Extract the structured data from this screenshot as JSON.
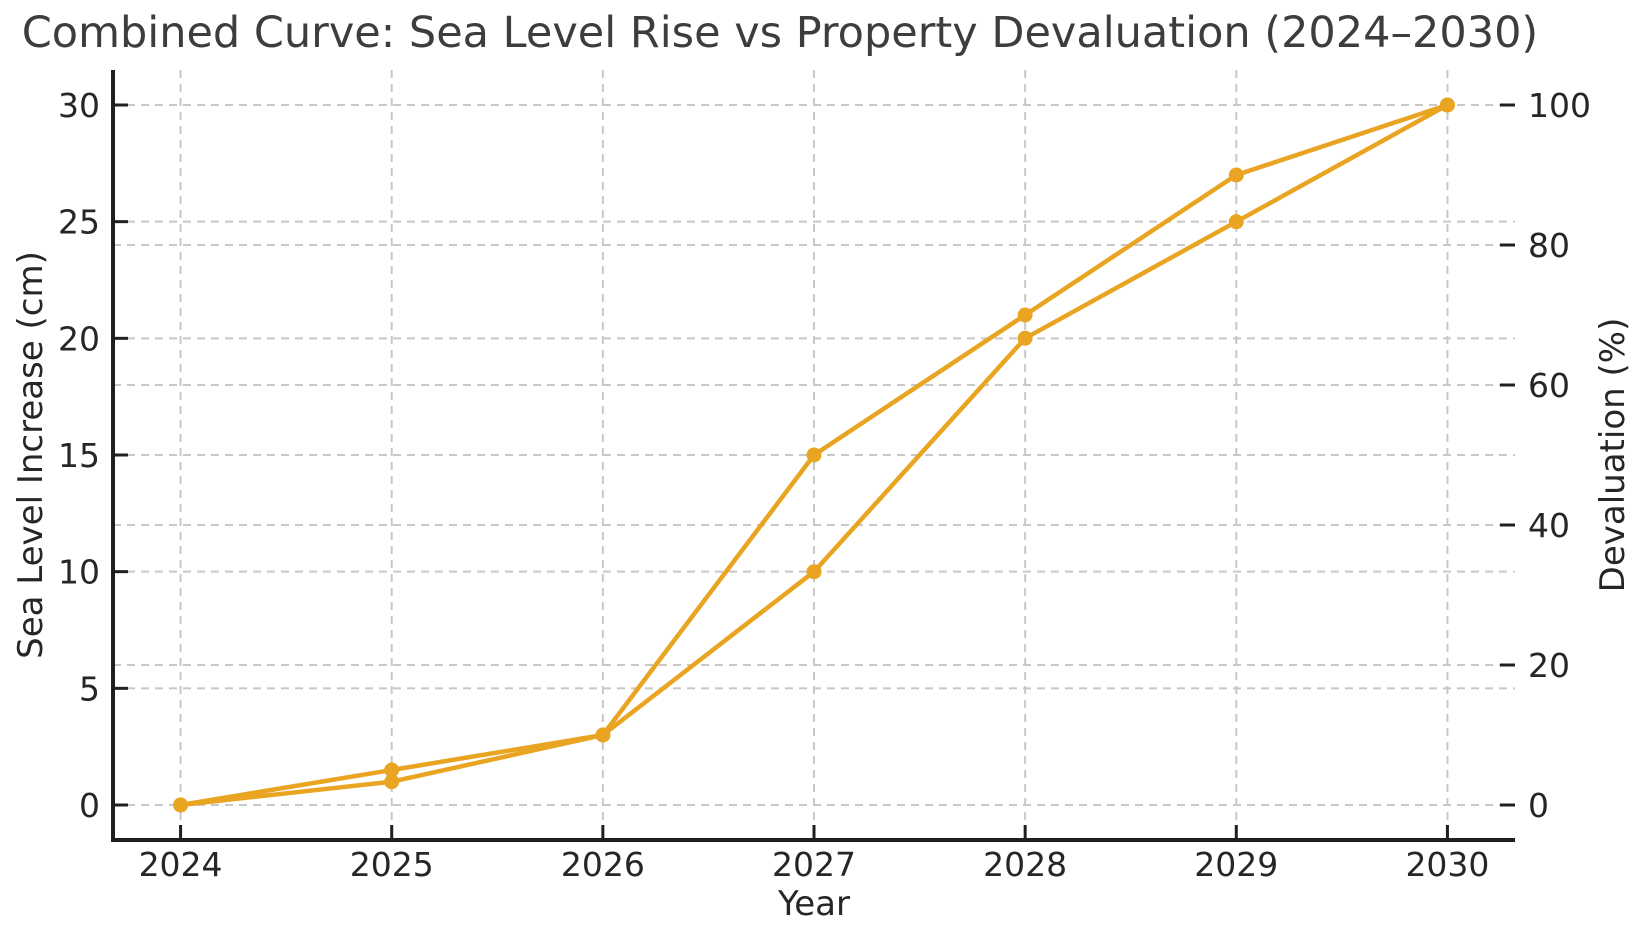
{
  "title": "Combined Curve: Sea Level Rise vs Property Devaluation (2024–2030)",
  "chart_data": {
    "type": "line",
    "title": "Combined Curve: Sea Level Rise vs Property Devaluation (2024–2030)",
    "xlabel": "Year",
    "x": [
      2024,
      2025,
      2026,
      2027,
      2028,
      2029,
      2030
    ],
    "x_tick_labels": [
      "2024",
      "2025",
      "2026",
      "2027",
      "2028",
      "2029",
      "2030"
    ],
    "series": [
      {
        "name": "Sea Level Increase (cm)",
        "axis": "left",
        "values": [
          0,
          1,
          3,
          10,
          20,
          25,
          30
        ],
        "color": "#E9A421",
        "marker": "circle"
      },
      {
        "name": "Devaluation (%)",
        "axis": "right",
        "values": [
          0,
          5,
          10,
          50,
          70,
          90,
          100
        ],
        "color": "#E9A421",
        "marker": "circle"
      }
    ],
    "left_axis": {
      "label": "Sea Level Increase (cm)",
      "ticks": [
        0,
        5,
        10,
        15,
        20,
        25,
        30
      ],
      "lim": [
        -1.5,
        31.5
      ]
    },
    "right_axis": {
      "label": "Devaluation (%)",
      "ticks": [
        0,
        20,
        40,
        60,
        80,
        100
      ],
      "lim": [
        -5,
        105
      ]
    },
    "x_lim": [
      -0.32,
      6.32
    ],
    "grid": {
      "visible": true,
      "style": "dashed",
      "horizontal": true,
      "vertical": true
    },
    "legend": {
      "visible": false
    },
    "colors": {
      "line": "#E9A421",
      "grid": "#c8c8c8",
      "spine": "#1f1f1f",
      "tick_text": "#262626",
      "title_text": "#3d3d3d",
      "background": "#ffffff"
    }
  }
}
